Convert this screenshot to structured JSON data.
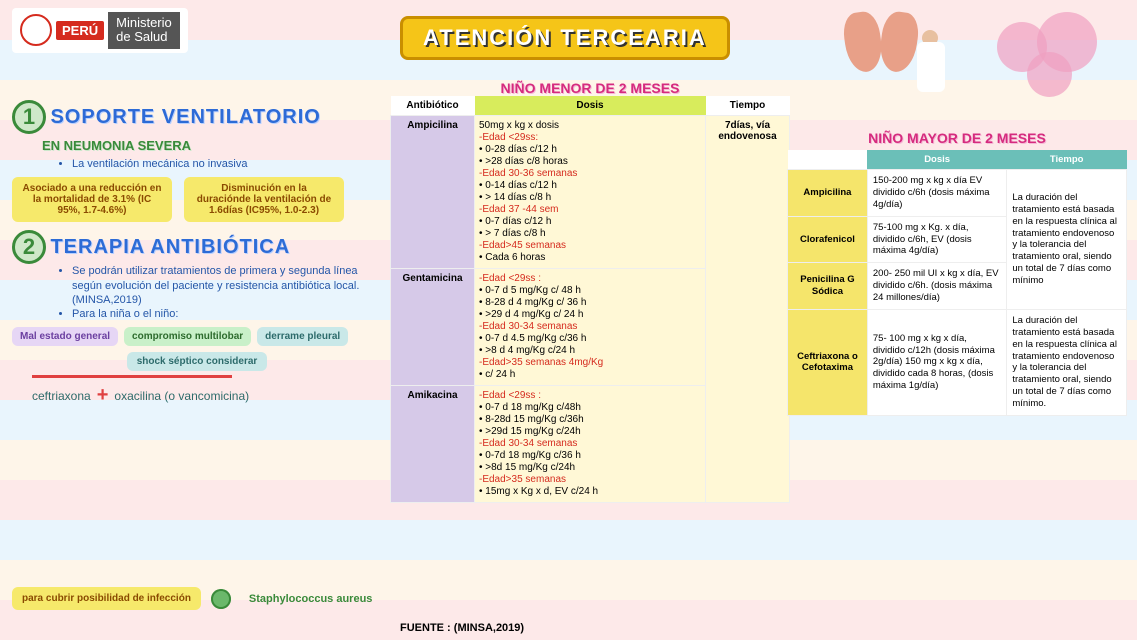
{
  "logo": {
    "peru": "PERÚ",
    "ministerio_l1": "Ministerio",
    "ministerio_l2": "de Salud"
  },
  "title": "ATENCIÓN TERCEARIA",
  "left": {
    "sec1_num": "1",
    "sec1_title": "SOPORTE VENTILATORIO",
    "sec1_sub": "EN NEUMONIA SEVERA",
    "sec1_bullet": "La ventilación mecánica no invasiva",
    "badge1": "Asociado a una reducción en la mortalidad de 3.1% (IC 95%, 1.7-4.6%)",
    "badge2": "Disminución en la duraciónde la ventilación de 1.6días (IC95%, 1.0-2.3)",
    "sec2_num": "2",
    "sec2_title": "TERAPIA ANTIBIÓTICA",
    "sec2_bullet1": "Se podrán utilizar tratamientos de primera y segunda línea según evolución del paciente y resistencia antibiótica local. (MINSA,2019)",
    "sec2_bullet2": "Para la niña o el niño:",
    "tags": {
      "t1": "Mal estado general",
      "t2": "compromiso multilobar",
      "t3": "derrame pleural",
      "t4": "shock séptico considerar"
    },
    "drug1": "ceftriaxona",
    "drug2": "oxacilina (o vancomicina)",
    "footer_tag": "para cubrir posibilidad de infección",
    "staph": "Staphylococcus aureus"
  },
  "mid": {
    "title": "NIÑO MENOR DE 2 MESES",
    "headers": {
      "ant": "Antibiótico",
      "dosis": "Dosis",
      "tiempo": "Tiempo"
    },
    "tiempo_shared": "7días, vía endovenosa",
    "rows": [
      {
        "ant": "Ampicilina",
        "dosis": "50mg x kg x dosis\n-Edad <29ss:\n• 0-28 días c/12 h\n• >28 días c/8 horas\n-Edad 30-36 semanas\n• 0-14 días c/12 h\n• > 14 días c/8 h\n-Edad 37 -44 sem\n• 0-7 días c/12 h\n• > 7 días c/8 h\n-Edad>45 semanas\n• Cada 6 horas"
      },
      {
        "ant": "Gentamicina",
        "dosis": "-Edad <29ss :\n• 0-7 d 5 mg/Kg c/ 48 h\n• 8-28 d 4 mg/Kg c/ 36 h\n• >29 d 4 mg/Kg c/ 24 h\n-Edad 30-34 semanas\n• 0-7 d 4.5 mg/Kg c/36 h\n• >8 d 4 mg/Kg c/24 h\n-Edad>35 semanas 4mg/Kg\n• c/ 24 h"
      },
      {
        "ant": "Amikacina",
        "dosis": "-Edad <29ss :\n• 0-7 d 18 mg/Kg c/48h\n• 8-28d 15 mg/Kg c/36h\n• >29d 15 mg/Kg c/24h\n-Edad 30-34 semanas\n• 0-7d 18 mg/Kg c/36 h\n• >8d 15 mg/Kg c/24h\n-Edad>35 semanas\n• 15mg x Kg x d, EV c/24 h"
      }
    ],
    "fuente": "FUENTE : (MINSA,2019)"
  },
  "right": {
    "title": "NIÑO MAYOR DE 2 MESES",
    "headers": {
      "dosis": "Dosis",
      "tiempo": "Tiempo"
    },
    "tiempo_shared1": "La duración del tratamiento está basada en la respuesta clínica al tratamiento endovenoso y la tolerancia del tratamiento oral, siendo un total de 7 días como mínimo",
    "tiempo_shared2": "La duración del tratamiento está basada en la respuesta clínica al tratamiento endovenoso y la tolerancia del tratamiento oral, siendo un total de 7 días como mínimo.",
    "rows": [
      {
        "ant": "Ampicilina",
        "dosis": "150-200 mg x kg x día EV dividido c/6h (dosis máxima 4g/día)"
      },
      {
        "ant": "Clorafenicol",
        "dosis": "75-100 mg x Kg. x día, dividido c/6h, EV (dosis máxima 4g/día)"
      },
      {
        "ant": "Penicilina G Sódica",
        "dosis": "200- 250 mil UI x kg x día, EV dividido c/6h. (dosis máxima 24 millones/día)"
      },
      {
        "ant": "Ceftriaxona o Cefotaxima",
        "dosis": "75- 100 mg x kg x día, dividido c/12h (dosis máxima 2g/día) 150 mg x kg x día, dividido cada 8 horas, (dosis máxima 1g/día)"
      }
    ]
  }
}
